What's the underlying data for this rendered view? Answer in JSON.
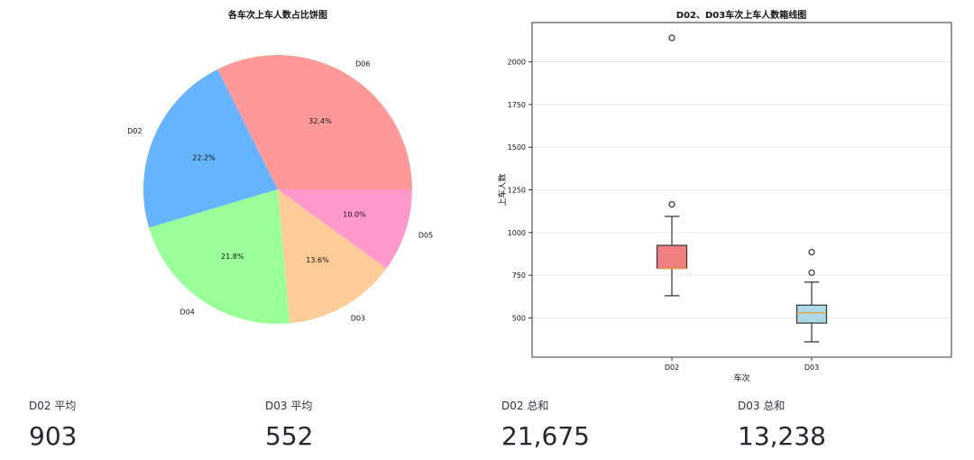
{
  "chart_data": [
    {
      "type": "pie",
      "title": "各车次上车人数占比饼图",
      "slices": [
        {
          "label": "D06",
          "value": 32.4,
          "pct_label": "32.4%",
          "color": "#ff9999"
        },
        {
          "label": "D02",
          "value": 22.2,
          "pct_label": "22.2%",
          "color": "#66b3ff"
        },
        {
          "label": "D04",
          "value": 21.8,
          "pct_label": "21.8%",
          "color": "#99ff99"
        },
        {
          "label": "D03",
          "value": 13.6,
          "pct_label": "13.6%",
          "color": "#ffcc99"
        },
        {
          "label": "D05",
          "value": 10.0,
          "pct_label": "10.0%",
          "color": "#ff99cc"
        }
      ]
    },
    {
      "type": "box",
      "title": "D02、D03车次上车人数箱线图",
      "xlabel": "车次",
      "ylabel": "上车人数",
      "ylim": [
        270,
        2230
      ],
      "yticks": [
        500,
        750,
        1000,
        1250,
        1500,
        1750,
        2000
      ],
      "grid": true,
      "boxes": [
        {
          "category": "D02",
          "whisker_low": 630,
          "q1": 790,
          "median": 790,
          "q3": 925,
          "whisker_high": 1095,
          "outliers": [
            1165,
            2140
          ],
          "color": "#f08080"
        },
        {
          "category": "D03",
          "whisker_low": 360,
          "q1": 470,
          "median": 530,
          "q3": 575,
          "whisker_high": 710,
          "outliers": [
            765,
            885
          ],
          "color": "#add8e6"
        }
      ]
    }
  ],
  "metrics": [
    {
      "label": "D02 平均",
      "value": "903"
    },
    {
      "label": "D03 平均",
      "value": "552"
    },
    {
      "label": "D02 总和",
      "value": "21,675"
    },
    {
      "label": "D03 总和",
      "value": "13,238"
    }
  ]
}
